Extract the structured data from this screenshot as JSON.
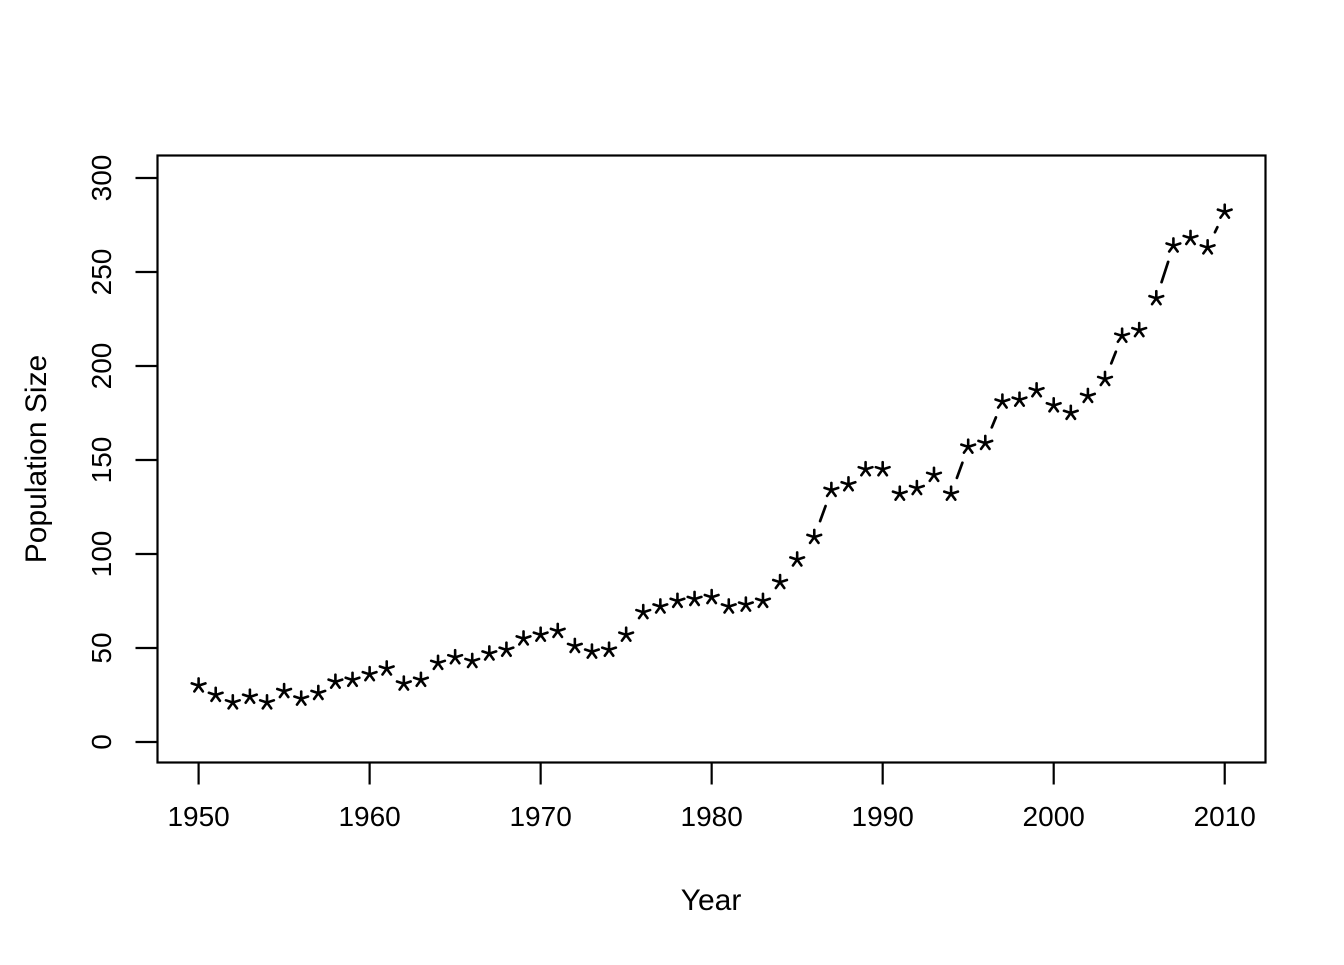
{
  "chart_data": {
    "type": "line",
    "style": "r-base-plot-type-b",
    "marker": "*",
    "title": "",
    "xlabel": "Year",
    "ylabel": "Population Size",
    "x": [
      1950,
      1951,
      1952,
      1953,
      1954,
      1955,
      1956,
      1957,
      1958,
      1959,
      1960,
      1961,
      1962,
      1963,
      1964,
      1965,
      1966,
      1967,
      1968,
      1969,
      1970,
      1971,
      1972,
      1973,
      1974,
      1975,
      1976,
      1977,
      1978,
      1979,
      1980,
      1981,
      1982,
      1983,
      1984,
      1985,
      1986,
      1987,
      1988,
      1989,
      1990,
      1991,
      1992,
      1993,
      1994,
      1995,
      1996,
      1997,
      1998,
      1999,
      2000,
      2001,
      2002,
      2003,
      2004,
      2005,
      2006,
      2007,
      2008,
      2009,
      2010
    ],
    "values": [
      30,
      25,
      21,
      24,
      21,
      27,
      23,
      26,
      32,
      33,
      36,
      39,
      31,
      33,
      42,
      45,
      43,
      47,
      49,
      55,
      57,
      59,
      51,
      48,
      49,
      57,
      69,
      72,
      75,
      76,
      77,
      72,
      73,
      75,
      85,
      97,
      109,
      134,
      137,
      145,
      145,
      132,
      135,
      142,
      132,
      157,
      159,
      181,
      182,
      187,
      179,
      175,
      184,
      193,
      216,
      219,
      236,
      264,
      268,
      263,
      282
    ],
    "x_ticks": [
      1950,
      1960,
      1970,
      1980,
      1990,
      2000,
      2010
    ],
    "y_ticks": [
      0,
      50,
      100,
      150,
      200,
      250,
      300
    ],
    "xlim": [
      1947.6,
      2012.4
    ],
    "ylim": [
      -12,
      312
    ],
    "grid": "off",
    "legend": "none",
    "colors": {
      "foreground": "#000000",
      "background": "#ffffff"
    }
  }
}
